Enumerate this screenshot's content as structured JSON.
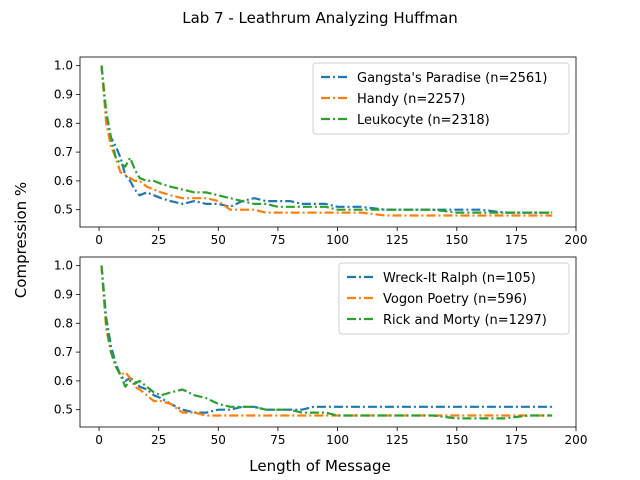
{
  "figure": {
    "title": "Lab 7 - Leathrum Analyzing Huffman",
    "shared_xlabel": "Length of Message",
    "shared_ylabel": "Compression %"
  },
  "colors": {
    "blue": "#1f77b4",
    "orange": "#ff7f0e",
    "green": "#2ca02c"
  },
  "chart_data": [
    {
      "type": "line",
      "line_style": "dash-dot",
      "xlim": [
        -8,
        200
      ],
      "ylim": [
        0.44,
        1.03
      ],
      "xticks": [
        0,
        25,
        50,
        75,
        100,
        125,
        150,
        175,
        200
      ],
      "yticks": [
        0.5,
        0.6,
        0.7,
        0.8,
        0.9,
        1.0
      ],
      "xtick_labels": [
        "0",
        "25",
        "50",
        "75",
        "100",
        "125",
        "150",
        "175",
        "200"
      ],
      "ytick_labels": [
        "0.5",
        "0.6",
        "0.7",
        "0.8",
        "0.9",
        "1.0"
      ],
      "legend_position": "top-right",
      "series": [
        {
          "name": "Gangsta's Paradise (n=2561)",
          "color": "#1f77b4",
          "x": [
            1,
            3,
            5,
            7,
            9,
            11,
            13,
            15,
            17,
            20,
            23,
            26,
            30,
            35,
            40,
            45,
            50,
            55,
            60,
            65,
            70,
            75,
            80,
            85,
            90,
            95,
            100,
            110,
            120,
            130,
            140,
            150,
            160,
            170,
            180,
            190
          ],
          "y": [
            1.0,
            0.82,
            0.75,
            0.72,
            0.68,
            0.62,
            0.6,
            0.57,
            0.55,
            0.56,
            0.55,
            0.54,
            0.53,
            0.52,
            0.53,
            0.52,
            0.52,
            0.51,
            0.53,
            0.54,
            0.53,
            0.53,
            0.53,
            0.52,
            0.52,
            0.52,
            0.51,
            0.51,
            0.5,
            0.5,
            0.5,
            0.5,
            0.5,
            0.49,
            0.49,
            0.49
          ]
        },
        {
          "name": "Handy (n=2257)",
          "color": "#ff7f0e",
          "x": [
            1,
            3,
            5,
            7,
            9,
            11,
            13,
            15,
            17,
            20,
            23,
            26,
            30,
            35,
            40,
            45,
            50,
            55,
            60,
            65,
            70,
            75,
            80,
            85,
            90,
            95,
            100,
            110,
            120,
            130,
            140,
            150,
            160,
            170,
            180,
            190
          ],
          "y": [
            1.0,
            0.8,
            0.72,
            0.68,
            0.63,
            0.62,
            0.61,
            0.6,
            0.6,
            0.58,
            0.57,
            0.56,
            0.55,
            0.54,
            0.54,
            0.54,
            0.53,
            0.5,
            0.5,
            0.5,
            0.49,
            0.49,
            0.49,
            0.49,
            0.49,
            0.49,
            0.49,
            0.49,
            0.48,
            0.48,
            0.48,
            0.48,
            0.48,
            0.48,
            0.48,
            0.48
          ]
        },
        {
          "name": "Leukocyte (n=2318)",
          "color": "#2ca02c",
          "x": [
            1,
            3,
            5,
            7,
            9,
            11,
            13,
            15,
            17,
            20,
            23,
            26,
            30,
            35,
            40,
            45,
            50,
            55,
            60,
            65,
            70,
            75,
            80,
            85,
            90,
            95,
            100,
            110,
            120,
            130,
            140,
            150,
            160,
            170,
            180,
            190
          ],
          "y": [
            1.0,
            0.84,
            0.75,
            0.68,
            0.66,
            0.65,
            0.68,
            0.64,
            0.61,
            0.6,
            0.6,
            0.59,
            0.58,
            0.57,
            0.56,
            0.56,
            0.55,
            0.54,
            0.53,
            0.52,
            0.52,
            0.51,
            0.51,
            0.51,
            0.51,
            0.51,
            0.5,
            0.5,
            0.5,
            0.5,
            0.5,
            0.49,
            0.49,
            0.49,
            0.49,
            0.49
          ]
        }
      ]
    },
    {
      "type": "line",
      "line_style": "dash-dot",
      "xlim": [
        -8,
        200
      ],
      "ylim": [
        0.44,
        1.03
      ],
      "xticks": [
        0,
        25,
        50,
        75,
        100,
        125,
        150,
        175,
        200
      ],
      "yticks": [
        0.5,
        0.6,
        0.7,
        0.8,
        0.9,
        1.0
      ],
      "xtick_labels": [
        "0",
        "25",
        "50",
        "75",
        "100",
        "125",
        "150",
        "175",
        "200"
      ],
      "ytick_labels": [
        "0.5",
        "0.6",
        "0.7",
        "0.8",
        "0.9",
        "1.0"
      ],
      "legend_position": "top-right",
      "series": [
        {
          "name": "Wreck-It Ralph (n=105)",
          "color": "#1f77b4",
          "x": [
            1,
            3,
            5,
            7,
            9,
            11,
            13,
            15,
            17,
            20,
            23,
            26,
            30,
            35,
            40,
            45,
            50,
            55,
            60,
            65,
            70,
            75,
            80,
            85,
            90,
            95,
            100,
            110,
            120,
            130,
            140,
            150,
            160,
            170,
            180,
            190
          ],
          "y": [
            1.0,
            0.82,
            0.72,
            0.66,
            0.62,
            0.6,
            0.61,
            0.6,
            0.58,
            0.57,
            0.55,
            0.54,
            0.52,
            0.5,
            0.49,
            0.49,
            0.5,
            0.5,
            0.51,
            0.51,
            0.5,
            0.5,
            0.5,
            0.5,
            0.51,
            0.51,
            0.51,
            0.51,
            0.51,
            0.51,
            0.51,
            0.51,
            0.51,
            0.51,
            0.51,
            0.51
          ]
        },
        {
          "name": "Vogon Poetry (n=596)",
          "color": "#ff7f0e",
          "x": [
            1,
            3,
            5,
            7,
            9,
            11,
            13,
            15,
            17,
            20,
            23,
            26,
            30,
            35,
            40,
            45,
            50,
            55,
            60,
            65,
            70,
            75,
            80,
            85,
            90,
            95,
            100,
            110,
            120,
            130,
            140,
            150,
            160,
            170,
            180,
            190
          ],
          "y": [
            1.0,
            0.78,
            0.7,
            0.65,
            0.62,
            0.63,
            0.61,
            0.58,
            0.57,
            0.55,
            0.53,
            0.53,
            0.52,
            0.49,
            0.49,
            0.48,
            0.48,
            0.48,
            0.48,
            0.48,
            0.48,
            0.48,
            0.48,
            0.48,
            0.48,
            0.48,
            0.48,
            0.48,
            0.48,
            0.48,
            0.48,
            0.48,
            0.48,
            0.48,
            0.48,
            0.48
          ]
        },
        {
          "name": "Rick and Morty (n=1297)",
          "color": "#2ca02c",
          "x": [
            1,
            3,
            5,
            7,
            9,
            11,
            13,
            15,
            17,
            20,
            23,
            26,
            30,
            35,
            40,
            45,
            50,
            55,
            60,
            65,
            70,
            75,
            80,
            85,
            90,
            95,
            100,
            110,
            120,
            130,
            140,
            150,
            160,
            170,
            180,
            190
          ],
          "y": [
            1.0,
            0.8,
            0.7,
            0.65,
            0.62,
            0.58,
            0.6,
            0.59,
            0.6,
            0.58,
            0.56,
            0.55,
            0.56,
            0.57,
            0.55,
            0.54,
            0.52,
            0.51,
            0.51,
            0.51,
            0.5,
            0.5,
            0.5,
            0.49,
            0.49,
            0.49,
            0.48,
            0.48,
            0.48,
            0.48,
            0.48,
            0.47,
            0.47,
            0.47,
            0.48,
            0.48
          ]
        }
      ]
    }
  ]
}
